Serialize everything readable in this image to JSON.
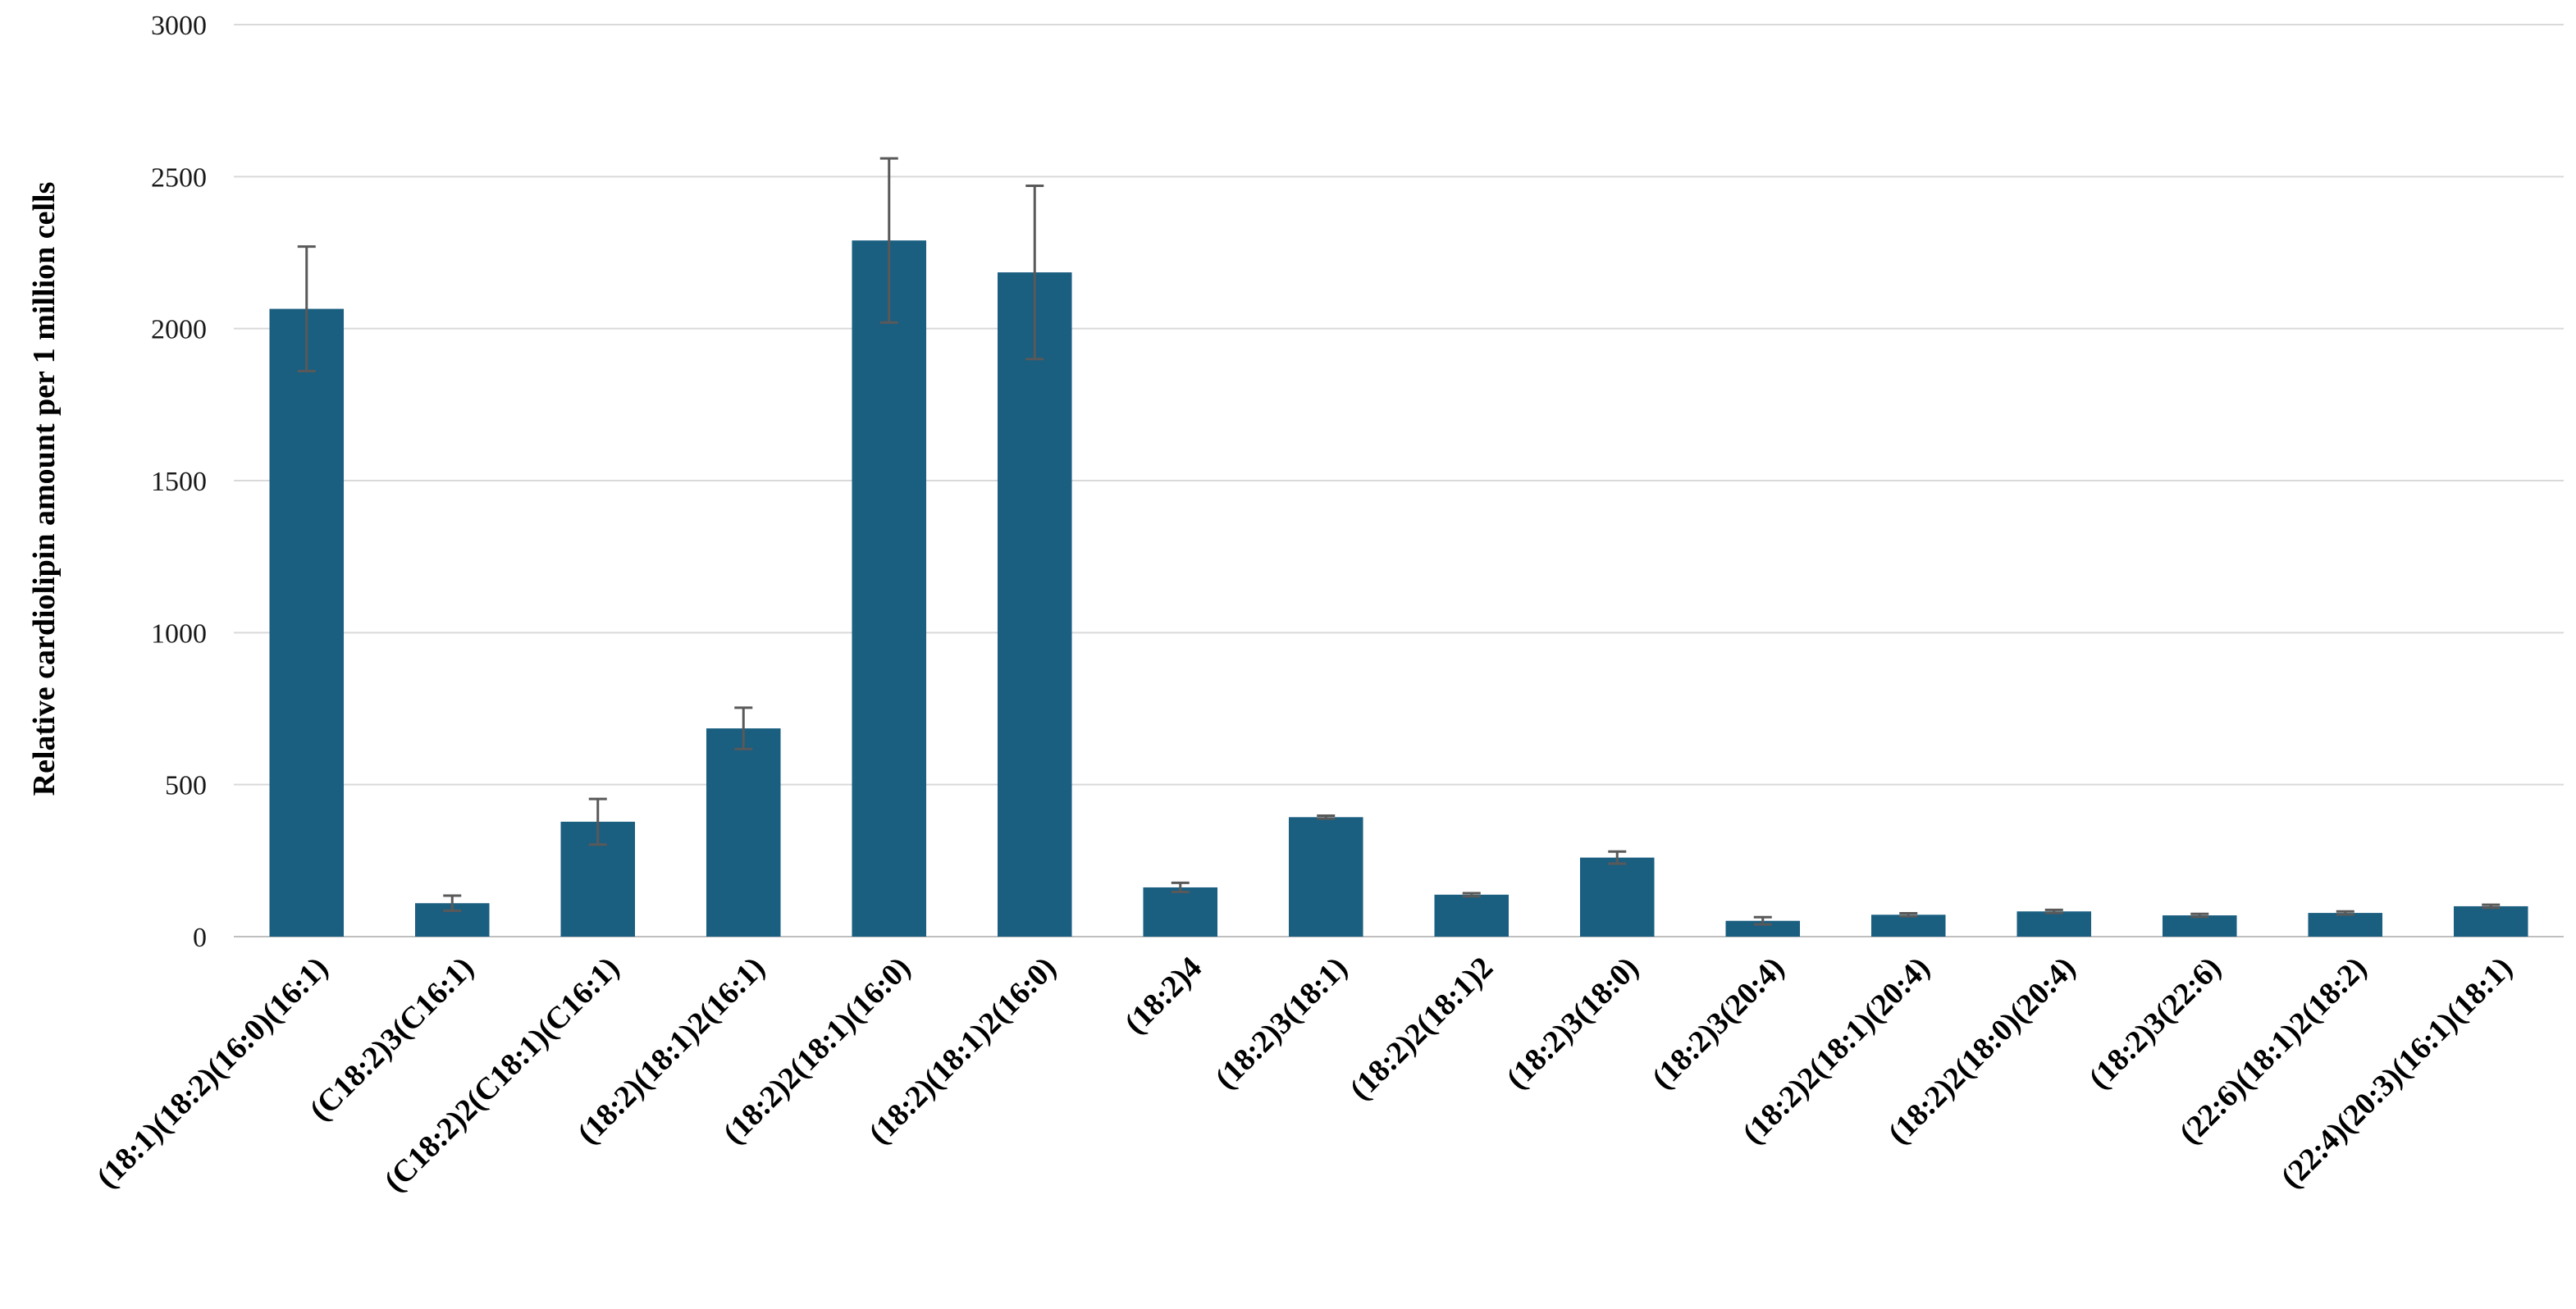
{
  "chart_data": {
    "type": "bar",
    "title": "",
    "xlabel": "",
    "ylabel": "Relative cardiolipin amount per 1 million cells",
    "ylim": [
      0,
      3000
    ],
    "yticks": [
      0,
      500,
      1000,
      1500,
      2000,
      2500,
      3000
    ],
    "grid": true,
    "legend": "none",
    "bar_color": "#1a5e80",
    "error_color": "#595959",
    "categories": [
      "(18:1)(18:2)(16:0)(16:1)",
      "(C18:2)3(C16:1)",
      "(C18:2)2(C18:1)(C16:1)",
      "(18:2)(18:1)2(16:1)",
      "(18:2)2(18:1)(16:0)",
      "(18:2)(18:1)2(16:0)",
      "(18:2)4",
      "(18:2)3(18:1)",
      "(18:2)2(18:1)2",
      "(18:2)3(18:0)",
      "(18:2)3(20:4)",
      "(18:2)2(18:1)(20:4)",
      "(18:2)2(18:0)(20:4)",
      "(18:2)3(22:6)",
      "(22:6)(18:1)2(18:2)",
      "(22:4)(20:3)(16:1)(18:1)"
    ],
    "values": [
      2065,
      110,
      378,
      685,
      2290,
      2185,
      162,
      393,
      138,
      260,
      52,
      72,
      83,
      70,
      78,
      100
    ],
    "errors": [
      205,
      25,
      75,
      68,
      270,
      285,
      15,
      5,
      5,
      20,
      12,
      5,
      5,
      5,
      5,
      5
    ]
  }
}
